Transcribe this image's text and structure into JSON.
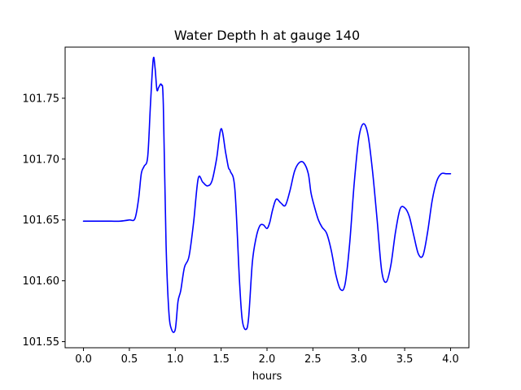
{
  "chart_data": {
    "type": "line",
    "title": "Water Depth h at gauge 140",
    "xlabel": "hours",
    "ylabel": "",
    "xlim": [
      -0.2,
      4.2
    ],
    "ylim": [
      101.545,
      101.792
    ],
    "xticks": [
      0.0,
      0.5,
      1.0,
      1.5,
      2.0,
      2.5,
      3.0,
      3.5,
      4.0
    ],
    "xtick_labels": [
      "0.0",
      "0.5",
      "1.0",
      "1.5",
      "2.0",
      "2.5",
      "3.0",
      "3.5",
      "4.0"
    ],
    "yticks": [
      101.55,
      101.6,
      101.65,
      101.7,
      101.75
    ],
    "ytick_labels": [
      "101.55",
      "101.60",
      "101.65",
      "101.70",
      "101.75"
    ],
    "grid": false,
    "series": [
      {
        "color": "#0000ff",
        "x": [
          0.0,
          0.1,
          0.2,
          0.3,
          0.4,
          0.5,
          0.56,
          0.6,
          0.63,
          0.66,
          0.7,
          0.73,
          0.76,
          0.78,
          0.8,
          0.82,
          0.85,
          0.87,
          0.9,
          0.93,
          0.96,
          1.0,
          1.03,
          1.06,
          1.1,
          1.15,
          1.2,
          1.25,
          1.3,
          1.35,
          1.4,
          1.45,
          1.5,
          1.55,
          1.58,
          1.6,
          1.65,
          1.7,
          1.73,
          1.77,
          1.8,
          1.84,
          1.88,
          1.92,
          1.96,
          2.0,
          2.03,
          2.06,
          2.1,
          2.15,
          2.2,
          2.25,
          2.3,
          2.35,
          2.4,
          2.45,
          2.48,
          2.52,
          2.56,
          2.6,
          2.65,
          2.7,
          2.75,
          2.8,
          2.85,
          2.9,
          2.95,
          3.0,
          3.05,
          3.1,
          3.15,
          3.2,
          3.25,
          3.3,
          3.35,
          3.4,
          3.45,
          3.5,
          3.55,
          3.6,
          3.65,
          3.7,
          3.75,
          3.8,
          3.85,
          3.9,
          3.95,
          4.0
        ],
        "y": [
          101.649,
          101.649,
          101.649,
          101.649,
          101.649,
          101.65,
          101.651,
          101.667,
          101.688,
          101.694,
          101.702,
          101.745,
          101.782,
          101.775,
          101.757,
          101.759,
          101.761,
          101.745,
          101.63,
          101.575,
          101.56,
          101.56,
          101.583,
          101.592,
          101.611,
          101.62,
          101.648,
          101.684,
          101.681,
          101.678,
          101.682,
          101.7,
          101.725,
          101.705,
          101.693,
          101.69,
          101.675,
          101.6,
          101.568,
          101.56,
          101.57,
          101.615,
          101.635,
          101.645,
          101.646,
          101.643,
          101.648,
          101.658,
          101.667,
          101.664,
          101.662,
          101.674,
          101.69,
          101.697,
          101.697,
          101.688,
          101.672,
          101.66,
          101.65,
          101.644,
          101.639,
          101.625,
          101.605,
          101.593,
          101.597,
          101.63,
          101.68,
          101.717,
          101.729,
          101.72,
          101.69,
          101.65,
          101.608,
          101.599,
          101.613,
          101.64,
          101.659,
          101.66,
          101.653,
          101.637,
          101.622,
          101.621,
          101.64,
          101.666,
          101.682,
          101.688,
          101.688,
          101.688
        ]
      }
    ]
  }
}
